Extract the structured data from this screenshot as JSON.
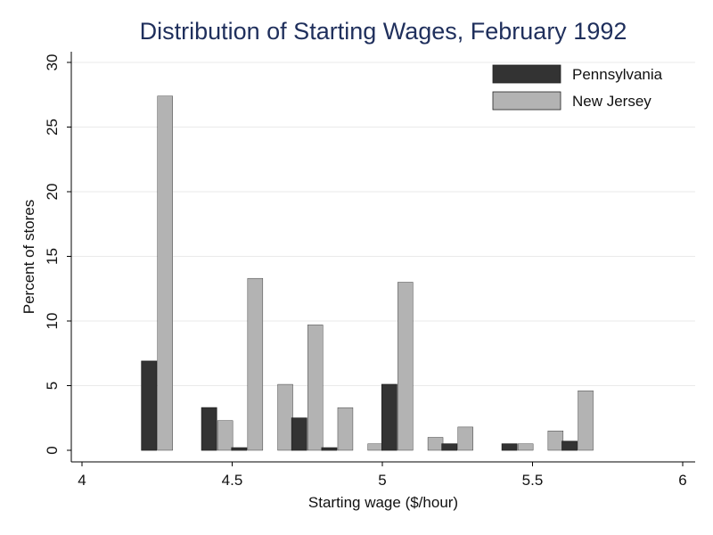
{
  "chart_data": {
    "type": "bar",
    "title": "Distribution of Starting Wages, February 1992",
    "xlabel": "Starting wage ($/hour)",
    "ylabel": "Percent of stores",
    "xlim": [
      4,
      6
    ],
    "ylim": [
      0,
      30
    ],
    "xticks": [
      4,
      4.5,
      5,
      5.5,
      6
    ],
    "xtick_labels": [
      "4",
      "4.5",
      "5",
      "5.5",
      "6"
    ],
    "yticks": [
      0,
      5,
      10,
      15,
      20,
      25,
      30
    ],
    "ytick_labels": [
      "0",
      "5",
      "10",
      "15",
      "20",
      "25",
      "30"
    ],
    "grid": true,
    "legend_position": "top-right",
    "categories": [
      4.25,
      4.35,
      4.45,
      4.55,
      4.65,
      4.75,
      4.85,
      4.95,
      5.05,
      5.15,
      5.25,
      5.35,
      5.45,
      5.55,
      5.65
    ],
    "series": [
      {
        "name": "Pennsylvania",
        "color": "#333333",
        "values": [
          6.9,
          0,
          3.3,
          0.2,
          0,
          2.5,
          0.2,
          0,
          5.1,
          0,
          0.5,
          0,
          0.5,
          0,
          0.7
        ]
      },
      {
        "name": "New Jersey",
        "color": "#b3b3b3",
        "values": [
          27.4,
          0,
          2.3,
          13.3,
          5.1,
          9.7,
          3.3,
          0.5,
          13.0,
          1.0,
          1.8,
          0,
          0.5,
          1.5,
          4.6
        ]
      }
    ]
  }
}
